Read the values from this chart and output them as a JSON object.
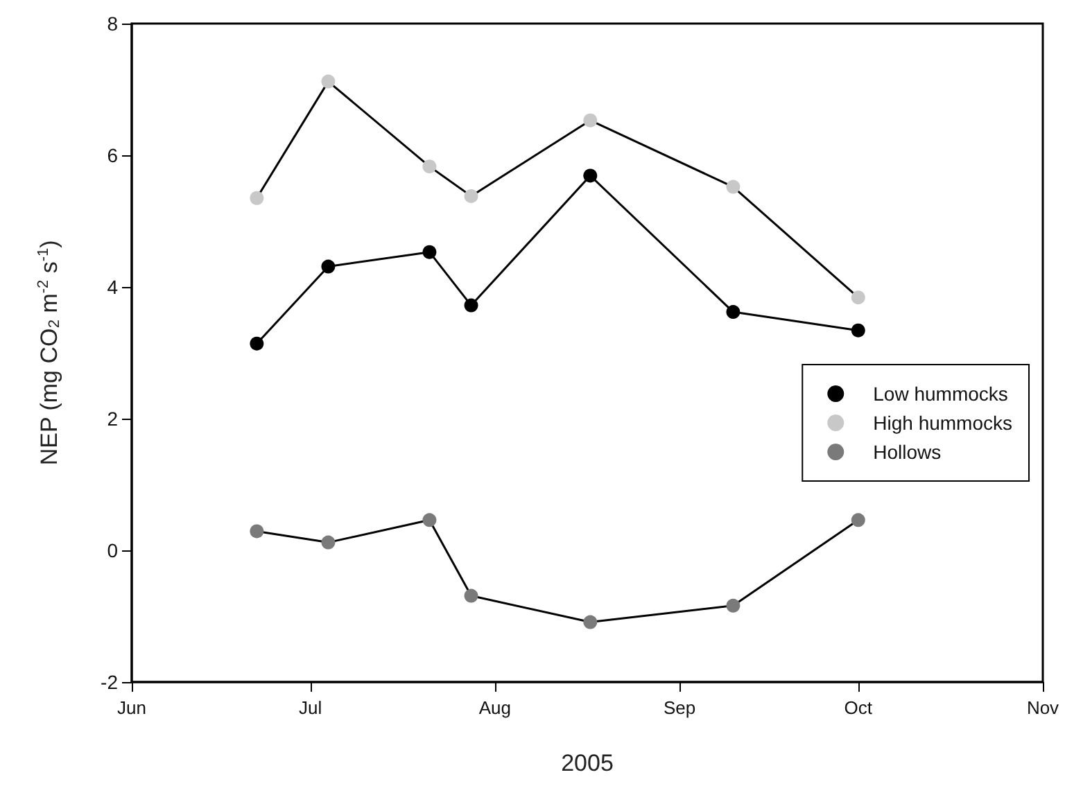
{
  "chart_data": {
    "type": "line",
    "xlabel": "2005",
    "ylabel": "NEP (mg CO$_{2}$ m$^{-2}$ s$^{-1}$)",
    "x": [
      "2005-06-22",
      "2005-07-04",
      "2005-07-21",
      "2005-07-28",
      "2005-08-17",
      "2005-09-10",
      "2005-10-01"
    ],
    "series": [
      {
        "name": "Low hummocks",
        "color": "#000000",
        "values": [
          3.14,
          4.31,
          4.53,
          3.72,
          5.69,
          3.62,
          3.34
        ]
      },
      {
        "name": "High hummocks",
        "color": "#c8c8c8",
        "values": [
          5.35,
          7.12,
          5.83,
          5.38,
          6.53,
          5.52,
          3.84
        ]
      },
      {
        "name": "Hollows",
        "color": "#7a7a7a",
        "values": [
          0.29,
          0.12,
          0.46,
          -0.69,
          -1.09,
          -0.84,
          0.46
        ]
      }
    ],
    "xlim": [
      "2005-06-01",
      "2005-11-01"
    ],
    "xticks": [
      {
        "value": "2005-06-01",
        "label": "Jun"
      },
      {
        "value": "2005-07-01",
        "label": "Jul"
      },
      {
        "value": "2005-08-01",
        "label": "Aug"
      },
      {
        "value": "2005-09-01",
        "label": "Sep"
      },
      {
        "value": "2005-10-01",
        "label": "Oct"
      },
      {
        "value": "2005-11-01",
        "label": "Nov"
      }
    ],
    "ylim": [
      -2,
      8
    ],
    "yticks": [
      -2,
      0,
      2,
      4,
      6,
      8
    ],
    "grid": false,
    "legend": "right",
    "marker": "circle",
    "line_style": "solid"
  }
}
